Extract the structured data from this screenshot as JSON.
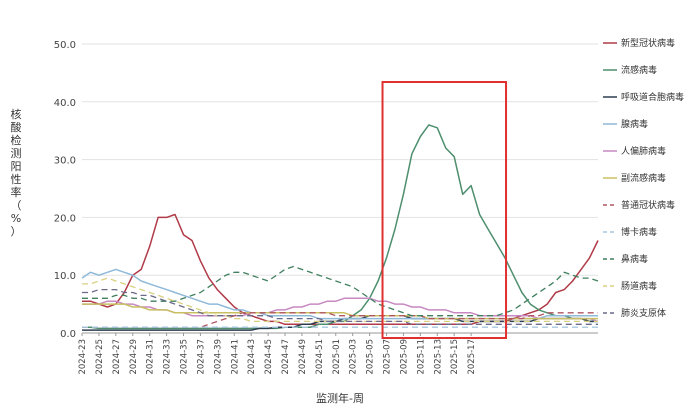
{
  "chart_data": {
    "type": "line",
    "ylabel": "核酸检测阳性率（%）",
    "xlabel": "监测年-周",
    "ylim": [
      0,
      50
    ],
    "yticks": [
      "0.0",
      "10.0",
      "20.0",
      "30.0",
      "40.0",
      "50.0"
    ],
    "xtick_labels": [
      "2024-23",
      "2024-25",
      "2024-27",
      "2024-29",
      "2024-31",
      "2024-33",
      "2024-35",
      "2024-37",
      "2024-39",
      "2024-41",
      "2024-43",
      "2024-45",
      "2024-47",
      "2024-49",
      "2024-51",
      "2025-01",
      "2025-03",
      "2025-05",
      "2025-07",
      "2025-09",
      "2025-11",
      "2025-13",
      "2025-15",
      "2025-17"
    ],
    "legend_position": "right",
    "highlight": {
      "from_week": 36,
      "to_week": 48,
      "color": "#e03030"
    },
    "series": [
      {
        "name": "新型冠状病毒",
        "color": "#b03a48",
        "dash": "solid",
        "values": [
          5.5,
          5.5,
          5.0,
          4.5,
          5.0,
          7.0,
          10.0,
          11.0,
          15.0,
          20.0,
          20.0,
          20.5,
          17.0,
          16.0,
          12.5,
          9.5,
          7.5,
          6.0,
          4.5,
          3.5,
          3.0,
          2.5,
          2.0,
          2.0,
          1.5,
          1.5,
          1.5,
          1.5,
          1.5,
          1.5,
          1.5,
          1.5,
          1.5,
          1.5,
          1.5,
          1.5,
          1.5,
          1.5,
          1.5,
          1.5,
          1.5,
          1.5,
          1.5,
          1.5,
          1.5,
          1.5,
          1.5,
          2.0,
          2.0,
          2.0,
          2.0,
          2.5,
          3.0,
          3.5,
          4.0,
          5.0,
          7.0,
          7.5,
          9.0,
          11.0,
          13.0,
          16.0
        ]
      },
      {
        "name": "流感病毒",
        "color": "#4e8f6e",
        "dash": "solid",
        "values": [
          1.0,
          1.0,
          0.8,
          0.8,
          0.8,
          0.8,
          0.8,
          0.8,
          0.8,
          0.8,
          0.8,
          0.8,
          0.8,
          0.8,
          0.8,
          0.8,
          0.8,
          0.8,
          0.8,
          0.8,
          0.8,
          0.8,
          0.8,
          0.8,
          1.0,
          1.0,
          1.0,
          1.0,
          1.5,
          1.5,
          2.0,
          2.0,
          3.0,
          4.0,
          6.0,
          9.0,
          13.0,
          18.0,
          24.0,
          31.0,
          34.0,
          36.0,
          35.5,
          32.0,
          30.5,
          24.0,
          25.5,
          20.5,
          18.0,
          15.5,
          13.0,
          10.0,
          7.0,
          5.0,
          4.0,
          3.5,
          3.0,
          3.0,
          2.5,
          2.5,
          2.0,
          2.0
        ]
      },
      {
        "name": "呼吸道合胞病毒",
        "color": "#2c3e50",
        "dash": "solid",
        "values": [
          0.5,
          0.5,
          0.5,
          0.5,
          0.5,
          0.5,
          0.5,
          0.5,
          0.5,
          0.5,
          0.5,
          0.5,
          0.5,
          0.5,
          0.5,
          0.5,
          0.5,
          0.5,
          0.5,
          0.5,
          0.5,
          0.8,
          0.8,
          1.0,
          1.0,
          1.0,
          1.5,
          1.5,
          2.0,
          2.0,
          2.0,
          2.5,
          2.5,
          2.5,
          3.0,
          3.0,
          3.0,
          3.0,
          3.0,
          2.5,
          2.5,
          2.5,
          2.5,
          2.5,
          2.5,
          2.0,
          2.0,
          2.0,
          2.0,
          2.0,
          2.0,
          2.0,
          2.0,
          2.0,
          2.5,
          2.5,
          2.5,
          2.5,
          2.5,
          2.5,
          2.0,
          2.0
        ]
      },
      {
        "name": "腺病毒",
        "color": "#8fb9d9",
        "dash": "solid",
        "values": [
          9.5,
          10.5,
          10.0,
          10.5,
          11.0,
          10.5,
          10.0,
          9.0,
          8.5,
          8.0,
          7.5,
          7.0,
          6.5,
          6.0,
          5.5,
          5.0,
          5.0,
          4.5,
          4.0,
          4.0,
          3.5,
          3.5,
          3.0,
          3.0,
          3.0,
          3.0,
          3.0,
          3.0,
          2.5,
          2.5,
          2.5,
          2.5,
          2.5,
          2.5,
          2.5,
          2.5,
          2.5,
          2.5,
          2.5,
          2.5,
          2.5,
          2.5,
          2.5,
          2.5,
          2.5,
          2.5,
          2.5,
          2.5,
          2.5,
          2.5,
          2.5,
          2.5,
          2.5,
          2.5,
          2.5,
          3.0,
          3.0,
          3.0,
          3.0,
          3.0,
          3.0,
          3.0
        ]
      },
      {
        "name": "人偏肺病毒",
        "color": "#c889c2",
        "dash": "solid",
        "values": [
          5.0,
          5.0,
          5.0,
          5.5,
          5.5,
          5.0,
          5.0,
          4.5,
          4.5,
          4.0,
          4.0,
          3.5,
          3.5,
          3.0,
          3.0,
          3.0,
          3.0,
          3.0,
          3.0,
          3.0,
          3.5,
          3.5,
          3.5,
          4.0,
          4.0,
          4.5,
          4.5,
          5.0,
          5.0,
          5.5,
          5.5,
          6.0,
          6.0,
          6.0,
          6.0,
          5.5,
          5.5,
          5.0,
          5.0,
          4.5,
          4.5,
          4.0,
          4.0,
          4.0,
          3.5,
          3.5,
          3.5,
          3.0,
          3.0,
          3.0,
          3.0,
          3.0,
          3.0,
          3.0,
          2.5,
          2.5,
          2.5,
          2.5,
          2.5,
          2.5,
          2.5,
          2.0
        ]
      },
      {
        "name": "副流感病毒",
        "color": "#c8c060",
        "dash": "solid",
        "values": [
          5.0,
          5.0,
          5.0,
          5.0,
          5.0,
          5.0,
          4.5,
          4.5,
          4.0,
          4.0,
          4.0,
          3.5,
          3.5,
          3.5,
          3.5,
          3.5,
          3.5,
          3.5,
          3.5,
          3.5,
          3.5,
          3.5,
          3.5,
          3.5,
          3.5,
          3.5,
          3.5,
          3.5,
          3.5,
          3.5,
          3.5,
          3.5,
          3.0,
          3.0,
          3.0,
          3.0,
          3.0,
          3.0,
          3.0,
          3.0,
          3.0,
          2.5,
          2.5,
          2.5,
          2.5,
          2.5,
          2.5,
          2.5,
          2.5,
          2.5,
          2.5,
          2.5,
          2.5,
          2.5,
          2.5,
          2.5,
          2.5,
          2.5,
          2.5,
          2.5,
          2.5,
          2.5
        ]
      },
      {
        "name": "普通冠状病毒",
        "color": "#b05560",
        "dash": "dash",
        "values": [
          1.0,
          1.0,
          1.0,
          1.0,
          1.0,
          1.0,
          1.0,
          1.0,
          1.0,
          1.0,
          1.0,
          1.0,
          1.0,
          1.0,
          1.0,
          1.5,
          2.0,
          2.5,
          3.0,
          3.5,
          3.5,
          3.5,
          3.5,
          3.5,
          3.5,
          3.5,
          3.5,
          3.5,
          3.5,
          3.5,
          3.0,
          3.0,
          3.0,
          3.0,
          3.0,
          3.0,
          3.0,
          3.0,
          3.0,
          3.0,
          3.0,
          2.5,
          2.5,
          2.5,
          2.5,
          2.5,
          2.5,
          2.5,
          2.5,
          2.5,
          2.5,
          2.5,
          2.5,
          3.0,
          3.0,
          3.5,
          3.5,
          3.5,
          3.5,
          3.5,
          3.5,
          3.5
        ]
      },
      {
        "name": "博卡病毒",
        "color": "#a8c8e0",
        "dash": "dash",
        "values": [
          1.0,
          1.0,
          1.0,
          1.0,
          1.0,
          1.0,
          1.0,
          1.0,
          1.0,
          1.0,
          1.0,
          1.0,
          1.0,
          1.0,
          1.0,
          1.0,
          1.0,
          1.0,
          1.0,
          1.0,
          1.0,
          1.0,
          1.0,
          1.0,
          1.0,
          1.0,
          1.0,
          1.0,
          1.0,
          1.0,
          1.0,
          1.0,
          1.0,
          1.0,
          1.0,
          1.0,
          1.0,
          1.0,
          1.0,
          1.0,
          1.0,
          1.0,
          1.0,
          1.0,
          1.0,
          1.0,
          1.0,
          1.0,
          1.0,
          1.0,
          1.0,
          1.0,
          1.0,
          1.0,
          1.0,
          1.0,
          1.0,
          1.0,
          1.0,
          1.0,
          1.0,
          1.0
        ]
      },
      {
        "name": "鼻病毒",
        "color": "#3f7f5e",
        "dash": "dash",
        "values": [
          6.0,
          6.0,
          6.0,
          6.0,
          6.5,
          6.5,
          6.0,
          6.0,
          5.5,
          5.5,
          5.5,
          5.5,
          6.0,
          6.5,
          7.0,
          8.0,
          9.0,
          10.0,
          10.5,
          10.5,
          10.0,
          9.5,
          9.0,
          10.0,
          11.0,
          11.5,
          11.0,
          10.5,
          10.0,
          9.5,
          9.0,
          8.5,
          8.0,
          7.0,
          6.0,
          5.0,
          4.5,
          4.0,
          3.5,
          3.0,
          3.0,
          3.0,
          3.0,
          3.0,
          3.0,
          3.0,
          3.0,
          3.0,
          3.0,
          3.0,
          3.5,
          4.0,
          5.0,
          6.0,
          7.0,
          8.0,
          9.0,
          10.5,
          10.0,
          9.5,
          9.5,
          9.0
        ]
      },
      {
        "name": "肠道病毒",
        "color": "#d8d080",
        "dash": "dash",
        "values": [
          8.5,
          8.5,
          9.0,
          9.5,
          9.0,
          8.5,
          8.0,
          7.5,
          7.0,
          6.5,
          6.0,
          5.5,
          5.0,
          4.5,
          4.0,
          3.5,
          3.0,
          3.0,
          2.5,
          2.5,
          2.0,
          2.0,
          2.0,
          2.0,
          2.0,
          2.0,
          2.0,
          2.0,
          2.0,
          2.0,
          2.0,
          2.0,
          2.0,
          2.0,
          2.0,
          2.0,
          2.0,
          2.0,
          2.0,
          2.0,
          2.0,
          2.0,
          2.0,
          2.0,
          2.0,
          2.0,
          2.0,
          2.0,
          2.0,
          2.0,
          2.0,
          2.0,
          2.0,
          2.0,
          2.0,
          2.0,
          2.0,
          2.0,
          2.0,
          2.0,
          2.0,
          2.0
        ]
      },
      {
        "name": "肺炎支原体",
        "color": "#6a6a8a",
        "dash": "dash",
        "values": [
          7.0,
          7.0,
          7.5,
          7.5,
          7.5,
          7.0,
          7.0,
          6.5,
          6.5,
          6.0,
          5.5,
          5.0,
          4.5,
          4.0,
          3.5,
          3.0,
          3.0,
          3.0,
          3.0,
          3.0,
          3.0,
          3.0,
          3.0,
          2.5,
          2.5,
          2.5,
          2.5,
          2.5,
          2.5,
          2.0,
          2.0,
          2.0,
          2.0,
          2.0,
          2.0,
          2.0,
          2.0,
          2.0,
          2.0,
          1.5,
          1.5,
          1.5,
          1.5,
          1.5,
          1.5,
          1.5,
          1.5,
          1.5,
          1.5,
          1.5,
          1.5,
          1.5,
          1.5,
          1.5,
          1.5,
          1.5,
          1.5,
          1.5,
          1.5,
          1.5,
          1.5,
          1.5
        ]
      }
    ]
  }
}
